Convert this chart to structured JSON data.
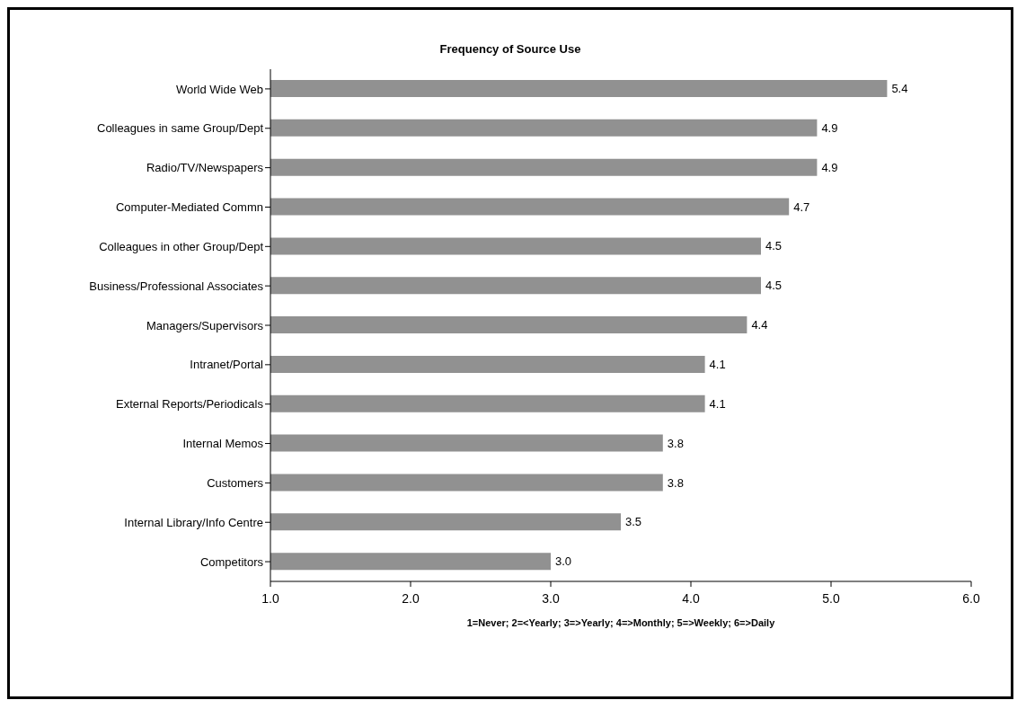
{
  "chart_data": {
    "type": "bar",
    "orientation": "horizontal",
    "title": "Frequency of Source Use",
    "xlabel": "1=Never; 2=<Yearly; 3=>Yearly; 4=>Monthly; 5=>Weekly; 6=>Daily",
    "categories": [
      "World Wide Web",
      "Colleagues in same Group/Dept",
      "Radio/TV/Newspapers",
      "Computer-Mediated Commn",
      "Colleagues in other Group/Dept",
      "Business/Professional Associates",
      "Managers/Supervisors",
      "Intranet/Portal",
      "External Reports/Periodicals",
      "Internal Memos",
      "Customers",
      "Internal Library/Info Centre",
      "Competitors"
    ],
    "values": [
      5.4,
      4.9,
      4.9,
      4.7,
      4.5,
      4.5,
      4.4,
      4.1,
      4.1,
      3.8,
      3.8,
      3.5,
      3.0
    ],
    "value_labels": [
      "5.4",
      "4.9",
      "4.9",
      "4.7",
      "4.5",
      "4.5",
      "4.4",
      "4.1",
      "4.1",
      "3.8",
      "3.8",
      "3.5",
      "3.0"
    ],
    "color": "#919191",
    "xlim": [
      1,
      6
    ],
    "xticks": [
      {
        "value": 1,
        "label": "1.0"
      },
      {
        "value": 2,
        "label": "2.0"
      },
      {
        "value": 3,
        "label": "3.0"
      },
      {
        "value": 4,
        "label": "4.0"
      },
      {
        "value": 5,
        "label": "5.0"
      },
      {
        "value": 6,
        "label": "6.0"
      }
    ],
    "grid": false,
    "legend": false
  }
}
